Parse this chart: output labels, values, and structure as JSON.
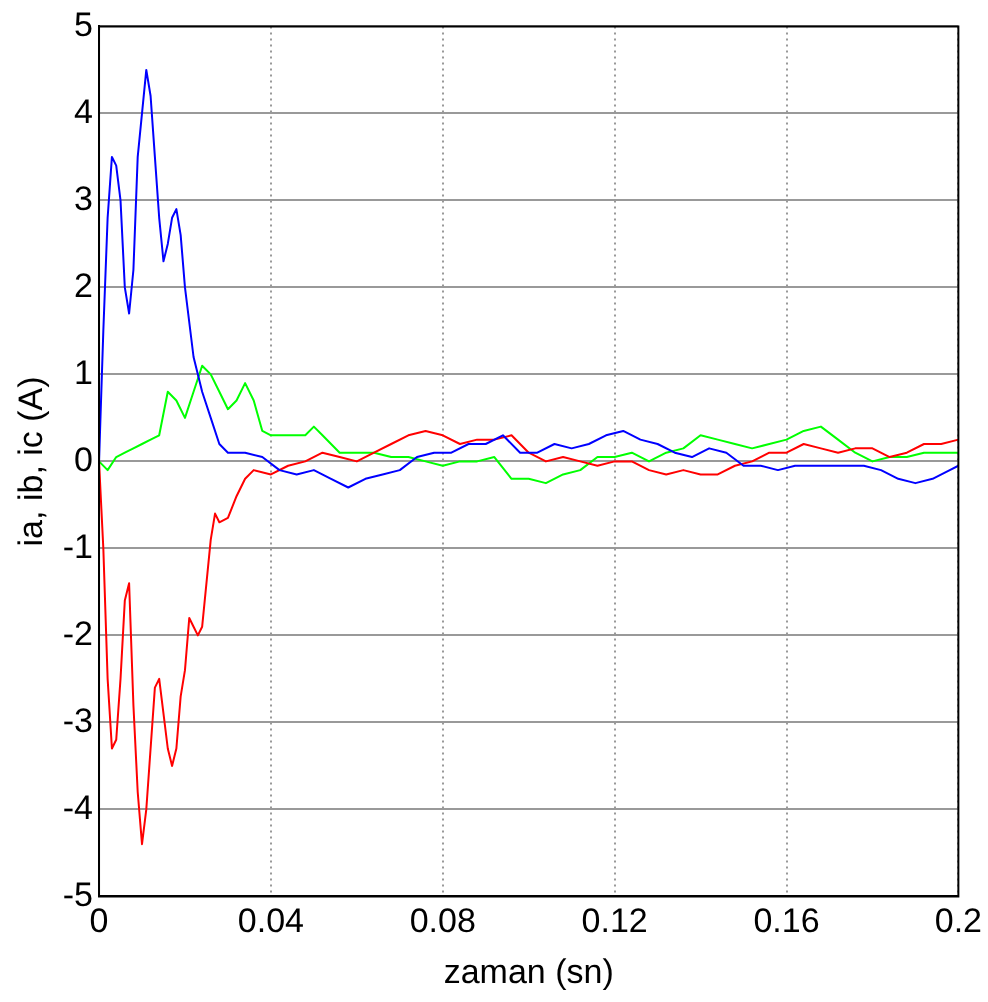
{
  "chart_data": {
    "type": "line",
    "xlabel": "zaman (sn)",
    "ylabel": "ia, ib, ic (A)",
    "xlim": [
      0,
      0.2
    ],
    "xticks": [
      0,
      0.04,
      0.08,
      0.12,
      0.16,
      0.2
    ],
    "ylim": [
      -5,
      5
    ],
    "yticks": [
      -5,
      -4,
      -3,
      -2,
      -1,
      0,
      1,
      2,
      3,
      4,
      5
    ],
    "grid": true,
    "line_style": "solid",
    "marker": "none",
    "series": [
      {
        "color": "#0000ff",
        "x": [
          0,
          0.001,
          0.002,
          0.003,
          0.004,
          0.005,
          0.006,
          0.007,
          0.008,
          0.009,
          0.01,
          0.011,
          0.012,
          0.013,
          0.014,
          0.015,
          0.016,
          0.017,
          0.018,
          0.019,
          0.02,
          0.022,
          0.024,
          0.026,
          0.028,
          0.03,
          0.034,
          0.038,
          0.042,
          0.046,
          0.05,
          0.054,
          0.058,
          0.062,
          0.066,
          0.07,
          0.074,
          0.078,
          0.082,
          0.086,
          0.09,
          0.094,
          0.098,
          0.102,
          0.106,
          0.11,
          0.114,
          0.118,
          0.122,
          0.126,
          0.13,
          0.134,
          0.138,
          0.142,
          0.146,
          0.15,
          0.154,
          0.158,
          0.162,
          0.166,
          0.17,
          0.174,
          0.178,
          0.182,
          0.186,
          0.19,
          0.194,
          0.198,
          0.2
        ],
        "values": [
          0,
          1.5,
          2.8,
          3.5,
          3.4,
          3.0,
          2.0,
          1.7,
          2.2,
          3.5,
          4.0,
          4.5,
          4.2,
          3.5,
          2.8,
          2.3,
          2.5,
          2.8,
          2.9,
          2.6,
          2.0,
          1.2,
          0.8,
          0.5,
          0.2,
          0.1,
          0.1,
          0.05,
          -0.1,
          -0.15,
          -0.1,
          -0.2,
          -0.3,
          -0.2,
          -0.15,
          -0.1,
          0.05,
          0.1,
          0.1,
          0.2,
          0.2,
          0.3,
          0.1,
          0.1,
          0.2,
          0.15,
          0.2,
          0.3,
          0.35,
          0.25,
          0.2,
          0.1,
          0.05,
          0.15,
          0.1,
          -0.05,
          -0.05,
          -0.1,
          -0.05,
          -0.05,
          -0.05,
          -0.05,
          -0.05,
          -0.1,
          -0.2,
          -0.25,
          -0.2,
          -0.1,
          -0.05
        ]
      },
      {
        "color": "#ff0000",
        "x": [
          0,
          0.001,
          0.002,
          0.003,
          0.004,
          0.005,
          0.006,
          0.007,
          0.008,
          0.009,
          0.01,
          0.011,
          0.012,
          0.013,
          0.014,
          0.015,
          0.016,
          0.017,
          0.018,
          0.019,
          0.02,
          0.021,
          0.022,
          0.023,
          0.024,
          0.025,
          0.026,
          0.027,
          0.028,
          0.03,
          0.032,
          0.034,
          0.036,
          0.04,
          0.044,
          0.048,
          0.052,
          0.056,
          0.06,
          0.064,
          0.068,
          0.072,
          0.076,
          0.08,
          0.084,
          0.088,
          0.092,
          0.096,
          0.1,
          0.104,
          0.108,
          0.112,
          0.116,
          0.12,
          0.124,
          0.128,
          0.132,
          0.136,
          0.14,
          0.144,
          0.148,
          0.152,
          0.156,
          0.16,
          0.164,
          0.168,
          0.172,
          0.176,
          0.18,
          0.184,
          0.188,
          0.192,
          0.196,
          0.2
        ],
        "values": [
          0,
          -1.0,
          -2.5,
          -3.3,
          -3.2,
          -2.5,
          -1.6,
          -1.4,
          -2.8,
          -3.8,
          -4.4,
          -4.0,
          -3.3,
          -2.6,
          -2.5,
          -2.9,
          -3.3,
          -3.5,
          -3.3,
          -2.7,
          -2.4,
          -1.8,
          -1.9,
          -2.0,
          -1.9,
          -1.4,
          -0.9,
          -0.6,
          -0.7,
          -0.65,
          -0.4,
          -0.2,
          -0.1,
          -0.15,
          -0.05,
          0,
          0.1,
          0.05,
          0,
          0.1,
          0.2,
          0.3,
          0.35,
          0.3,
          0.2,
          0.25,
          0.25,
          0.3,
          0.1,
          0,
          0.05,
          0,
          -0.05,
          0,
          0,
          -0.1,
          -0.15,
          -0.1,
          -0.15,
          -0.15,
          -0.05,
          0,
          0.1,
          0.1,
          0.2,
          0.15,
          0.1,
          0.15,
          0.15,
          0.05,
          0.1,
          0.2,
          0.2,
          0.25
        ]
      },
      {
        "color": "#00ff00",
        "x": [
          0,
          0.002,
          0.004,
          0.006,
          0.008,
          0.01,
          0.012,
          0.014,
          0.016,
          0.018,
          0.02,
          0.022,
          0.024,
          0.026,
          0.028,
          0.03,
          0.032,
          0.034,
          0.036,
          0.038,
          0.04,
          0.044,
          0.048,
          0.05,
          0.052,
          0.056,
          0.06,
          0.064,
          0.068,
          0.072,
          0.076,
          0.08,
          0.084,
          0.088,
          0.092,
          0.096,
          0.1,
          0.104,
          0.108,
          0.112,
          0.116,
          0.12,
          0.124,
          0.128,
          0.132,
          0.136,
          0.14,
          0.144,
          0.148,
          0.152,
          0.156,
          0.16,
          0.164,
          0.168,
          0.172,
          0.176,
          0.18,
          0.184,
          0.188,
          0.192,
          0.196,
          0.2
        ],
        "values": [
          0,
          -0.1,
          0.05,
          0.1,
          0.15,
          0.2,
          0.25,
          0.3,
          0.8,
          0.7,
          0.5,
          0.8,
          1.1,
          1.0,
          0.8,
          0.6,
          0.7,
          0.9,
          0.7,
          0.35,
          0.3,
          0.3,
          0.3,
          0.4,
          0.3,
          0.1,
          0.1,
          0.1,
          0.05,
          0.05,
          0,
          -0.05,
          0,
          0,
          0.05,
          -0.2,
          -0.2,
          -0.25,
          -0.15,
          -0.1,
          0.05,
          0.05,
          0.1,
          0,
          0.1,
          0.15,
          0.3,
          0.25,
          0.2,
          0.15,
          0.2,
          0.25,
          0.35,
          0.4,
          0.25,
          0.1,
          0,
          0.05,
          0.05,
          0.1,
          0.1,
          0.1
        ]
      }
    ]
  }
}
